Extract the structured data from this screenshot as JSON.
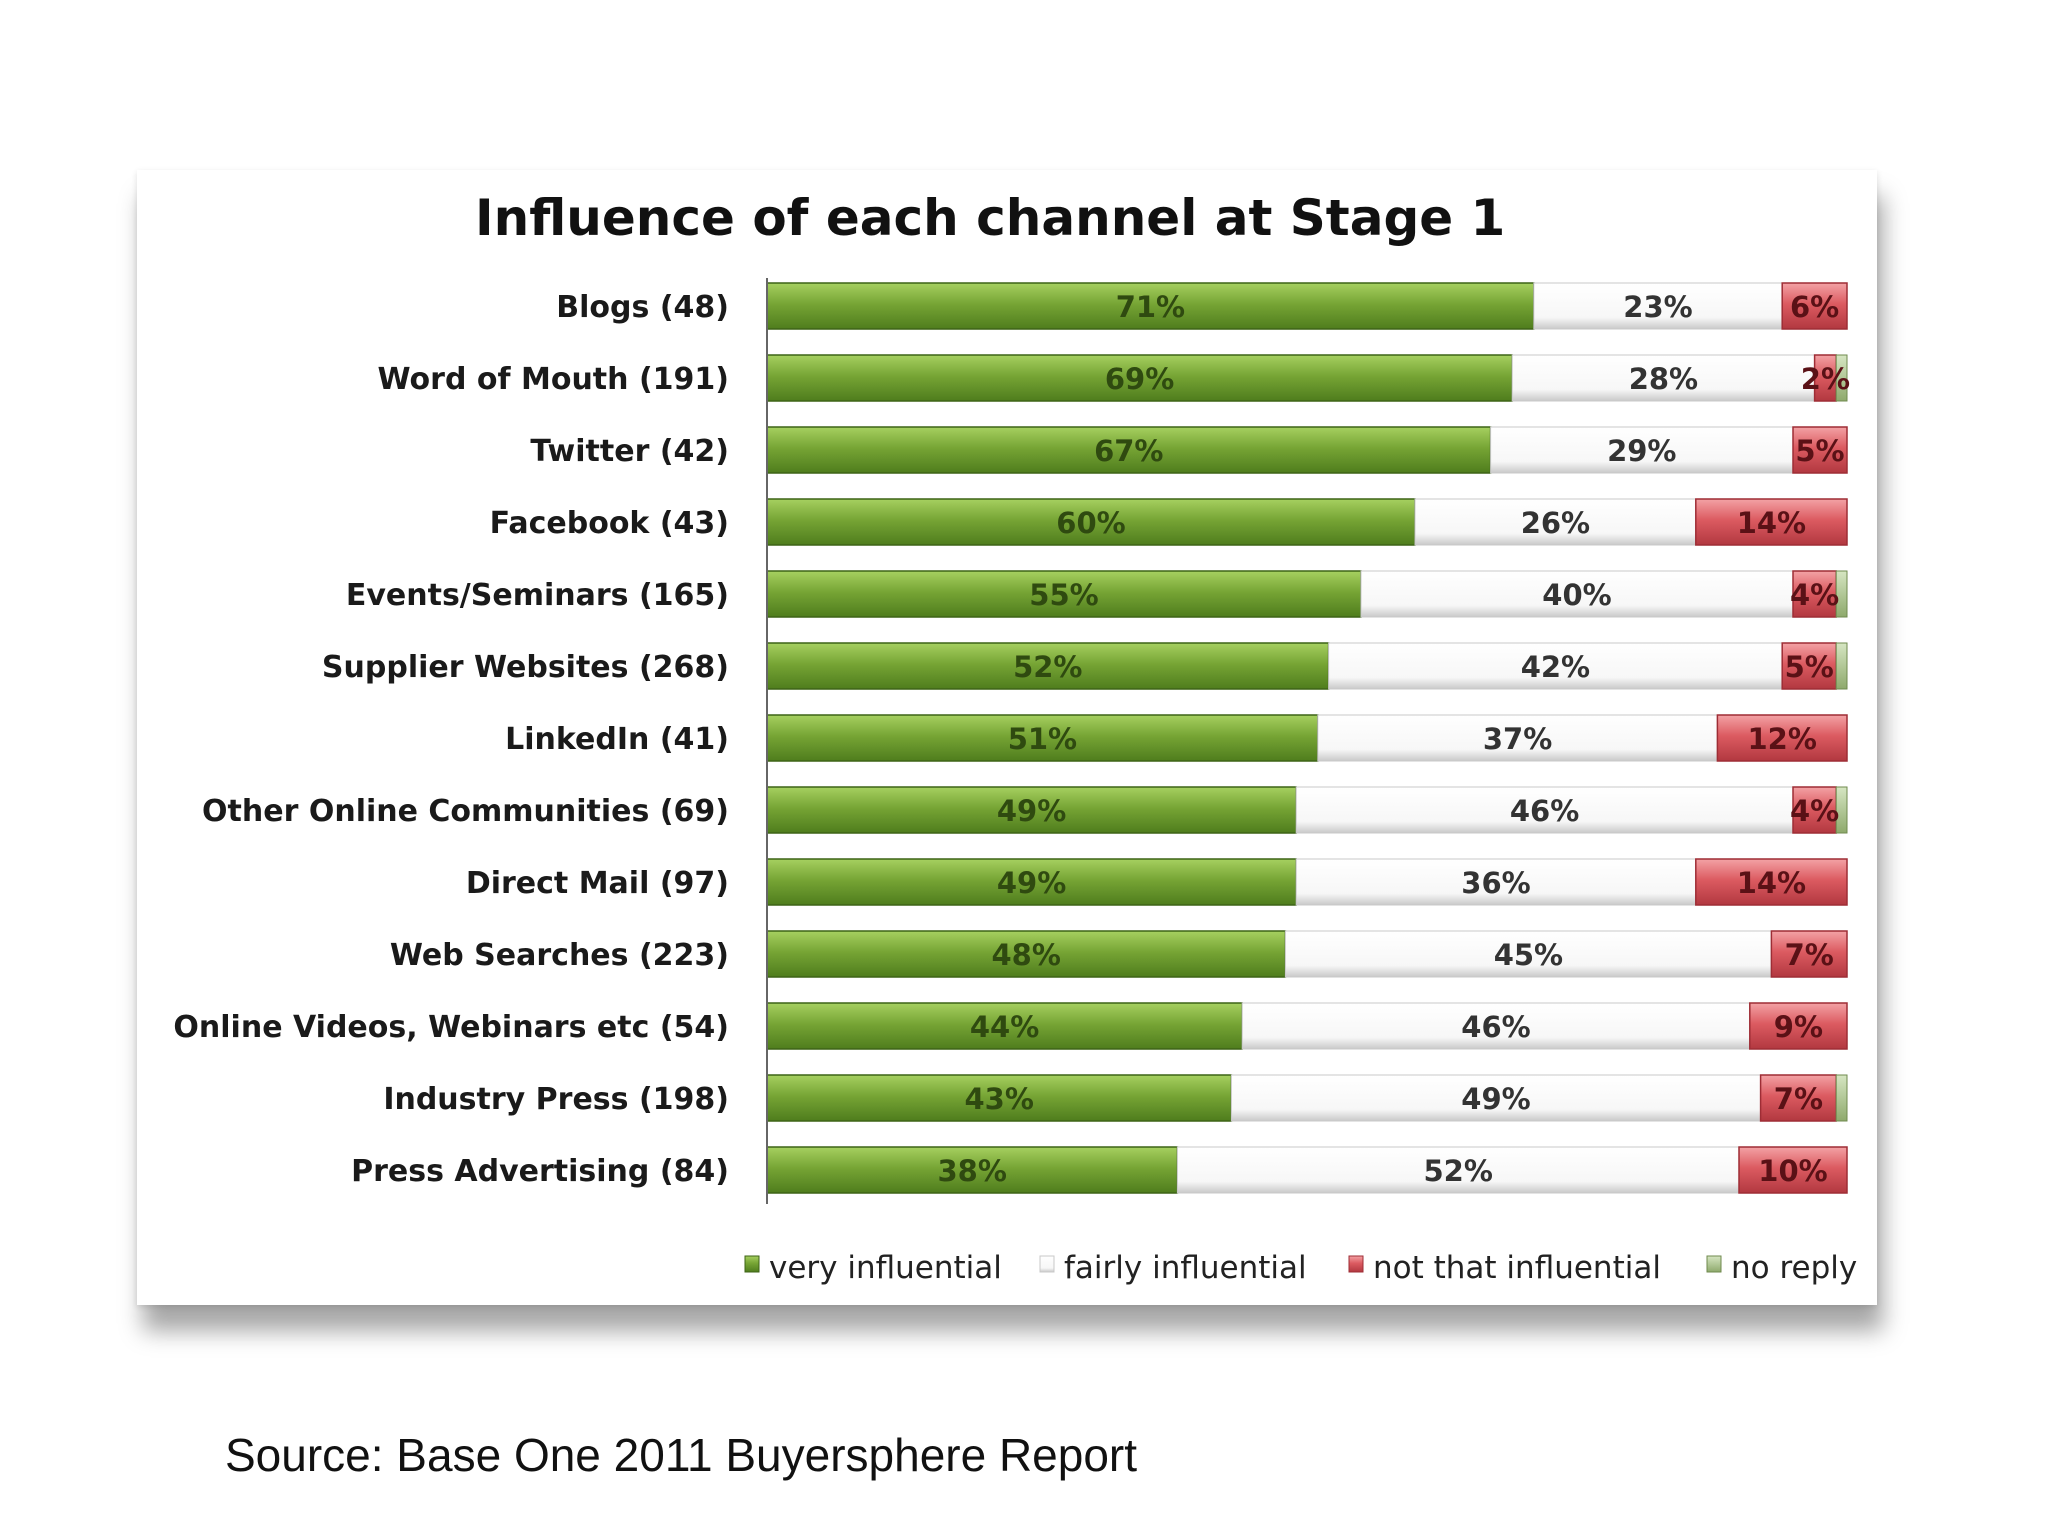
{
  "source_text": "Source: Base One 2011 Buyersphere Report",
  "colors": {
    "very": "#6a9a2c",
    "very_light": "#9cc85a",
    "fairly": "#f6f6f6",
    "not": "#d9565c",
    "not_light": "#ef9a9e",
    "noreply": "#a8c08a",
    "axis": "#666666"
  },
  "chart_data": {
    "type": "bar",
    "orientation": "horizontal",
    "stacked": true,
    "title": "Influence of each channel at Stage 1",
    "xlim": [
      0,
      100
    ],
    "grid": false,
    "legend_position": "bottom",
    "categories": [
      "Blogs (48)",
      "Word of Mouth (191)",
      "Twitter (42)",
      "Facebook (43)",
      "Events/Seminars (165)",
      "Supplier Websites (268)",
      "LinkedIn (41)",
      "Other Online Communities (69)",
      "Direct Mail (97)",
      "Web Searches (223)",
      "Online Videos, Webinars etc (54)",
      "Industry Press (198)",
      "Press Advertising (84)"
    ],
    "series": [
      {
        "name": "very influential",
        "key": "very",
        "values": [
          71,
          69,
          67,
          60,
          55,
          52,
          51,
          49,
          49,
          48,
          44,
          43,
          38
        ],
        "labels": [
          "71%",
          "69%",
          "67%",
          "60%",
          "55%",
          "52%",
          "51%",
          "49%",
          "49%",
          "48%",
          "44%",
          "43%",
          "38%"
        ]
      },
      {
        "name": "fairly influential",
        "key": "fairly",
        "values": [
          23,
          28,
          29,
          26,
          40,
          42,
          37,
          46,
          36,
          45,
          46,
          49,
          52
        ],
        "labels": [
          "23%",
          "28%",
          "29%",
          "26%",
          "40%",
          "42%",
          "37%",
          "46%",
          "36%",
          "45%",
          "46%",
          "49%",
          "52%"
        ]
      },
      {
        "name": "not that influential",
        "key": "not",
        "values": [
          6,
          2,
          5,
          14,
          4,
          5,
          12,
          4,
          14,
          7,
          9,
          7,
          10
        ],
        "labels": [
          "6%",
          "2%",
          "5%",
          "14%",
          "4%",
          "5%",
          "12%",
          "4%",
          "14%",
          "7%",
          "9%",
          "7%",
          "10%"
        ]
      },
      {
        "name": "no reply",
        "key": "noreply",
        "values": [
          0,
          1,
          0,
          0,
          1,
          1,
          0,
          1,
          0,
          0,
          0,
          1,
          0
        ]
      }
    ]
  }
}
